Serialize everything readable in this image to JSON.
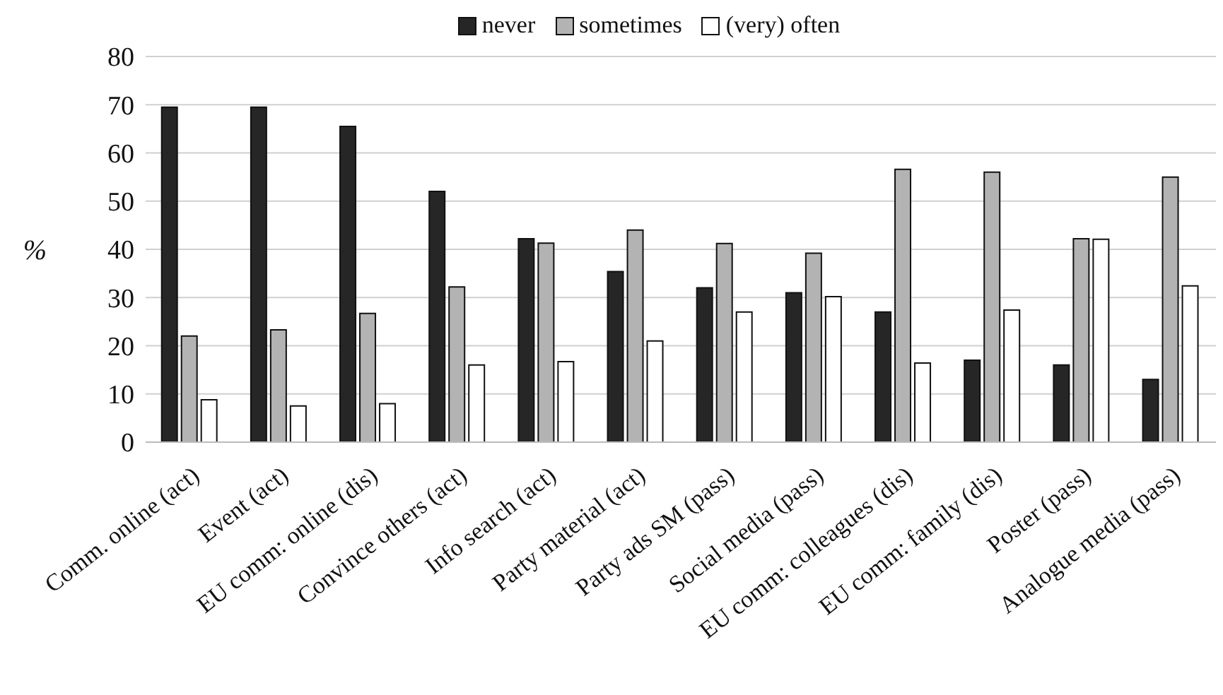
{
  "chart_data": {
    "type": "bar",
    "ylabel": "%",
    "categories": [
      "Comm. online (act)",
      "Event (act)",
      "EU comm: online (dis)",
      "Convince others (act)",
      "Info search (act)",
      "Party material (act)",
      "Party ads SM (pass)",
      "Social media (pass)",
      "EU comm: colleagues (dis)",
      "EU comm: family (dis)",
      "Poster (pass)",
      "Analogue media (pass)"
    ],
    "series": [
      {
        "name": "never",
        "color": "#262626",
        "values": [
          69.5,
          69.5,
          65.5,
          52,
          42.2,
          35.4,
          32,
          31,
          27,
          17,
          16,
          13
        ]
      },
      {
        "name": "sometimes",
        "color": "#b3b3b3",
        "values": [
          22,
          23.3,
          26.7,
          32.2,
          41.3,
          44,
          41.2,
          39.2,
          56.6,
          56,
          42.2,
          55
        ]
      },
      {
        "name": "(very) often",
        "color": "#ffffff",
        "values": [
          8.8,
          7.5,
          8,
          16,
          16.7,
          21,
          27,
          30.2,
          16.4,
          27.4,
          42.1,
          32.4
        ]
      }
    ],
    "ylim": [
      0,
      80
    ],
    "yticks": [
      0,
      10,
      20,
      30,
      40,
      50,
      60,
      70,
      80
    ],
    "grid": "y",
    "legend": "top"
  }
}
